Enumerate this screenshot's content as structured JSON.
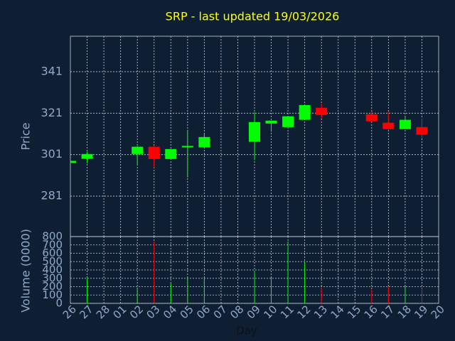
{
  "chart_data": {
    "type": "candlestick",
    "title": "SRP - last updated 19/03/2026",
    "x_label": "Day",
    "y_label": "Price",
    "volume_label": "Volume (0000)",
    "categories": [
      "26",
      "27",
      "28",
      "01",
      "02",
      "03",
      "04",
      "05",
      "06",
      "07",
      "08",
      "09",
      "10",
      "11",
      "12",
      "13",
      "14",
      "15",
      "16",
      "17",
      "18",
      "19",
      "20"
    ],
    "open": [
      297,
      299,
      null,
      null,
      301.3,
      304.8,
      298.9,
      304.5,
      304.5,
      null,
      null,
      307.2,
      316,
      314.3,
      317.8,
      323.6,
      null,
      null,
      320.5,
      316.4,
      313.3,
      314.3,
      null
    ],
    "high": [
      298,
      302.4,
      null,
      null,
      305,
      305.4,
      303.7,
      313,
      310.9,
      null,
      null,
      321.5,
      317.4,
      319.5,
      325,
      325.6,
      null,
      null,
      321.8,
      321.5,
      319.1,
      318.4,
      null
    ],
    "low": [
      297,
      296.9,
      null,
      null,
      296,
      294.8,
      298.9,
      290,
      304,
      null,
      null,
      298.3,
      312,
      314.3,
      317.8,
      318.4,
      null,
      null,
      317.1,
      313.3,
      313.3,
      308.9,
      null
    ],
    "close": [
      298,
      301.3,
      null,
      null,
      304.8,
      298.9,
      303.7,
      305.2,
      309.5,
      null,
      null,
      316.7,
      317.4,
      319.5,
      324.9,
      320.1,
      null,
      null,
      317.1,
      313.3,
      317.8,
      310.6,
      null
    ],
    "volume": [
      null,
      300,
      null,
      null,
      190,
      740,
      240,
      315,
      315,
      null,
      null,
      390,
      306,
      740,
      485,
      187,
      null,
      null,
      160,
      205,
      205,
      180,
      null
    ],
    "ylim": [
      261.5,
      358.1
    ],
    "yticks": [
      281,
      301,
      321,
      341
    ],
    "volume_ylim": [
      0,
      800
    ],
    "volume_yticks": [
      0,
      100,
      200,
      300,
      400,
      500,
      600,
      700,
      800
    ],
    "up_color": "#00ff00",
    "down_color": "#ff0000",
    "grid": true
  }
}
